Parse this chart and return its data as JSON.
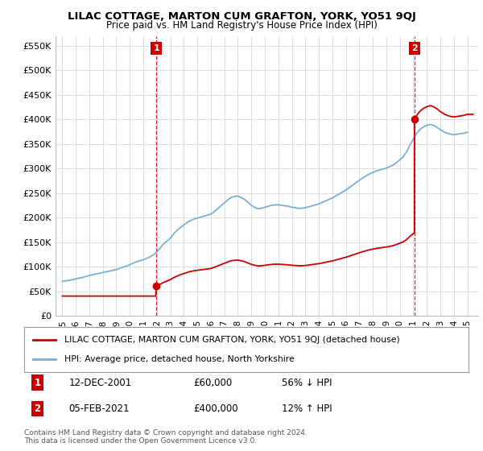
{
  "title": "LILAC COTTAGE, MARTON CUM GRAFTON, YORK, YO51 9QJ",
  "subtitle": "Price paid vs. HM Land Registry's House Price Index (HPI)",
  "legend_line1": "LILAC COTTAGE, MARTON CUM GRAFTON, YORK, YO51 9QJ (detached house)",
  "legend_line2": "HPI: Average price, detached house, North Yorkshire",
  "annotation1_label": "1",
  "annotation1_date": "12-DEC-2001",
  "annotation1_price": "£60,000",
  "annotation1_hpi": "56% ↓ HPI",
  "annotation2_label": "2",
  "annotation2_date": "05-FEB-2021",
  "annotation2_price": "£400,000",
  "annotation2_hpi": "12% ↑ HPI",
  "footnote1": "Contains HM Land Registry data © Crown copyright and database right 2024.",
  "footnote2": "This data is licensed under the Open Government Licence v3.0.",
  "red_color": "#cc0000",
  "blue_color": "#7aafd4",
  "bg_color": "#ffffff",
  "grid_color": "#dddddd",
  "anno_box_color": "#cc0000",
  "ylim_min": 0,
  "ylim_max": 570000,
  "yticks": [
    0,
    50000,
    100000,
    150000,
    200000,
    250000,
    300000,
    350000,
    400000,
    450000,
    500000,
    550000
  ],
  "ytick_labels": [
    "£0",
    "£50K",
    "£100K",
    "£150K",
    "£200K",
    "£250K",
    "£300K",
    "£350K",
    "£400K",
    "£450K",
    "£500K",
    "£550K"
  ],
  "sale1_year": 2001.96,
  "sale1_price": 60000,
  "sale2_year": 2021.09,
  "sale2_price": 400000,
  "xmin": 1994.5,
  "xmax": 2025.8,
  "x_years": [
    1995,
    1996,
    1997,
    1998,
    1999,
    2000,
    2001,
    2002,
    2003,
    2004,
    2005,
    2006,
    2007,
    2008,
    2009,
    2010,
    2011,
    2012,
    2013,
    2014,
    2015,
    2016,
    2017,
    2018,
    2019,
    2020,
    2021,
    2022,
    2023,
    2024,
    2025
  ]
}
